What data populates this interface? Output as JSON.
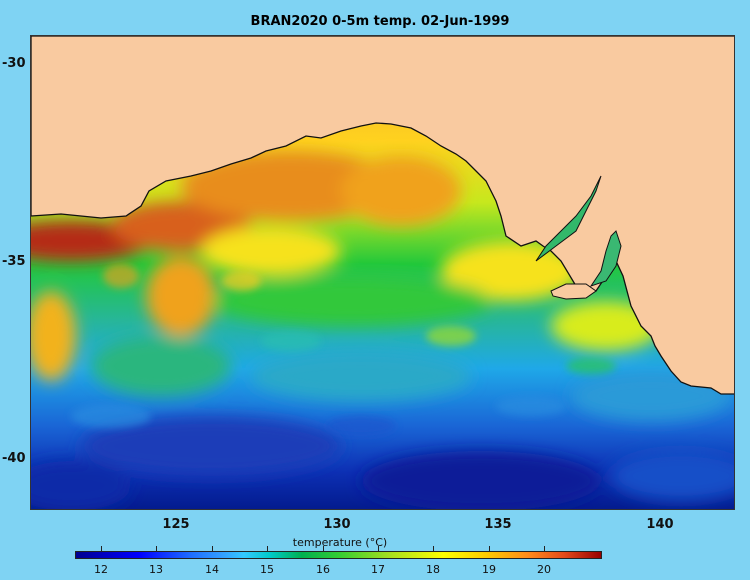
{
  "title": "BRAN2020 0-5m temp. 02-Jun-1999",
  "map": {
    "lat_ticks": [
      "-30",
      "-35",
      "-40"
    ],
    "lon_ticks": [
      "125",
      "130",
      "135",
      "140"
    ],
    "colors": {
      "land": "#f9caa0",
      "warm": "#c9361a",
      "cold": "#001b9e"
    }
  },
  "colorbar": {
    "label": "temperature (°C)",
    "ticks": [
      "12",
      "13",
      "14",
      "15",
      "16",
      "17",
      "18",
      "19",
      "20"
    ],
    "range": [
      11.6,
      20.8
    ],
    "colormap": "jet"
  }
}
